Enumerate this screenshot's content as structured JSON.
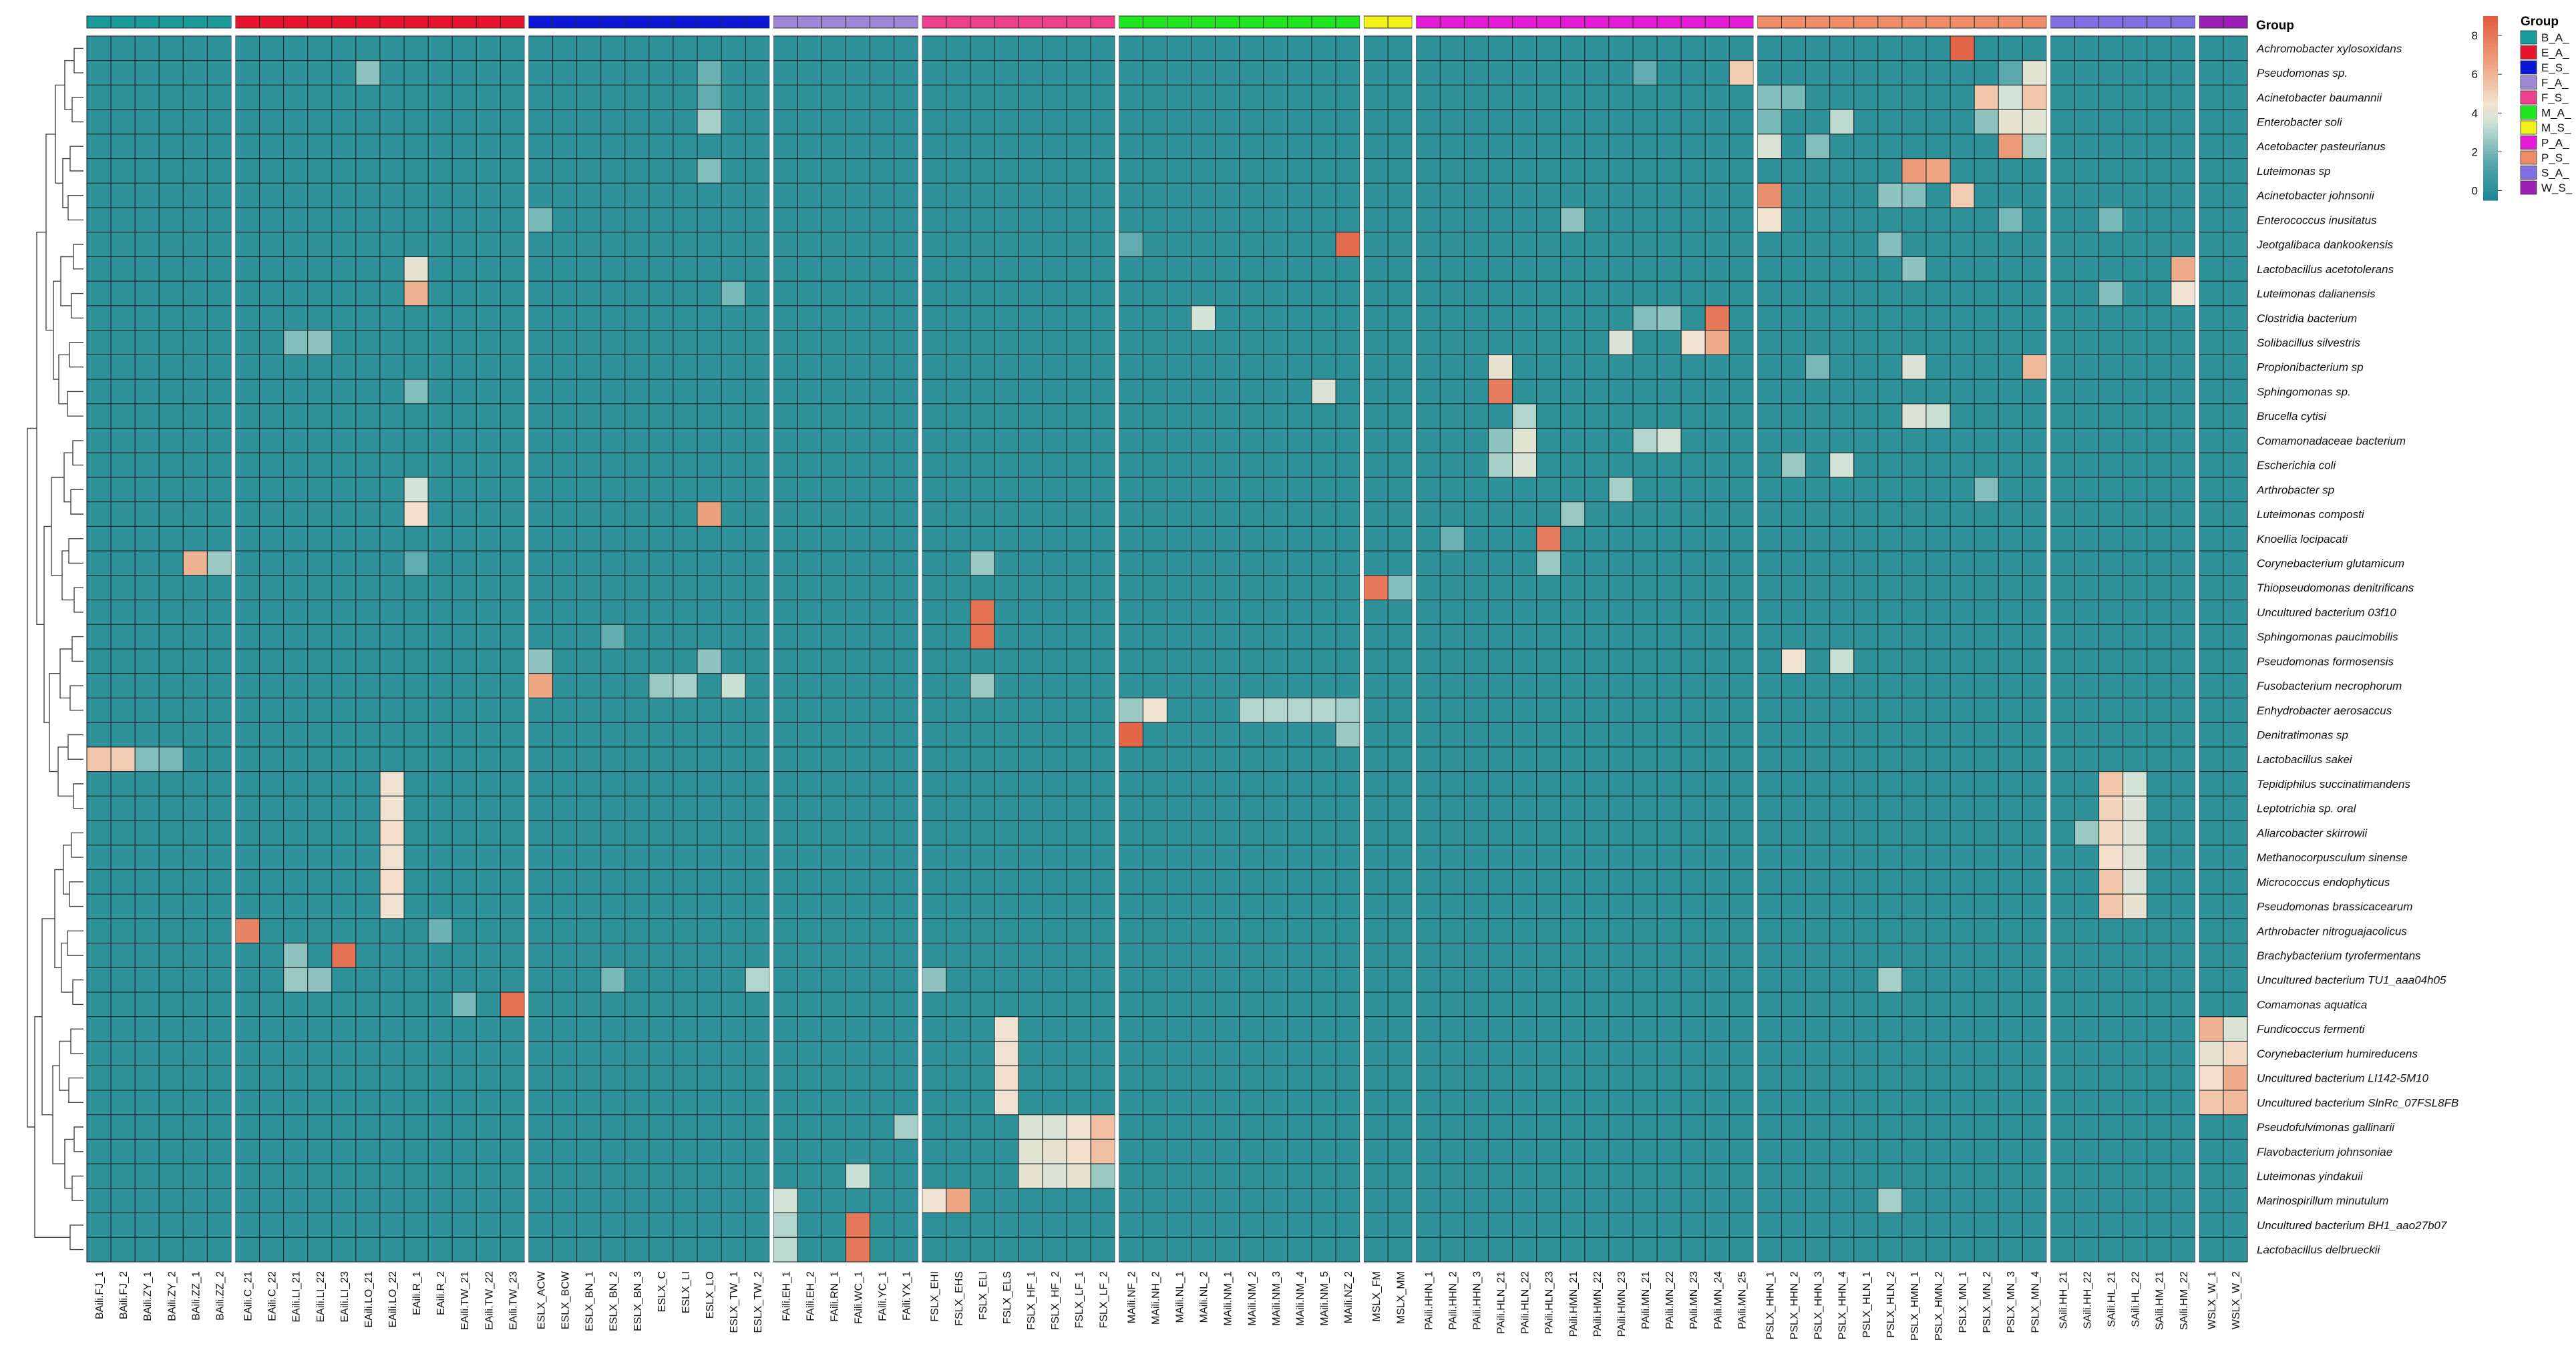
{
  "chart_data": {
    "type": "heatmap",
    "title": "",
    "annotation_title": "Group",
    "row_labels": [
      "Achromobacter xylosoxidans",
      "Pseudomonas sp.",
      "Acinetobacter baumannii",
      "Enterobacter soli",
      "Acetobacter pasteurianus",
      "Luteimonas sp",
      "Acinetobacter johnsonii",
      "Enterococcus inusitatus",
      "Jeotgalibaca dankookensis",
      "Lactobacillus acetotolerans",
      "Luteimonas dalianensis",
      "Clostridia bacterium",
      "Solibacillus silvestris",
      "Propionibacterium sp",
      "Sphingomonas sp.",
      "Brucella cytisi",
      "Comamonadaceae bacterium",
      "Escherichia coli",
      "Arthrobacter sp",
      "Luteimonas composti",
      "Knoellia locipacati",
      "Corynebacterium glutamicum",
      "Thiopseudomonas denitrificans",
      "Uncultured bacterium 03f10",
      "Sphingomonas paucimobilis",
      "Pseudomonas formosensis",
      "Fusobacterium necrophorum",
      "Enhydrobacter aerosaccus",
      "Denitratimonas sp",
      "Lactobacillus sakei",
      "Tepidiphilus succinatimandens",
      "Leptotrichia sp. oral",
      "Aliarcobacter skirrowii",
      "Methanocorpusculum sinense",
      "Micrococcus endophyticus",
      "Pseudomonas brassicacearum",
      "Arthrobacter nitroguajacolicus",
      "Brachybacterium tyrofermentans",
      "Uncultured bacterium TU1_aaa04h05",
      "Comamonas aquatica",
      "Fundicoccus fermenti",
      "Corynebacterium humireducens",
      "Uncultured bacterium LI142-5M10",
      "Uncultured bacterium SlnRc_07FSL8FB",
      "Pseudofulvimonas gallinarii",
      "Flavobacterium johnsoniae",
      "Luteimonas yindakuii",
      "Marinospirillum minutulum",
      "Uncultured bacterium BH1_aao27b07",
      "Lactobacillus delbrueckii"
    ],
    "groups": [
      {
        "name": "B_A_",
        "color": "#1a9a9a",
        "columns": [
          "BAili.FJ_1",
          "BAili.FJ_2",
          "BAili.ZY_1",
          "BAili.ZY_2",
          "BAili.ZZ_1",
          "BAili.ZZ_2"
        ]
      },
      {
        "name": "E_A_",
        "color": "#e8142e",
        "columns": [
          "EAili.C_21",
          "EAili.C_22",
          "EAili.LI_21",
          "EAili.LI_22",
          "EAili.LI_23",
          "EAili.LO_21",
          "EAili.LO_22",
          "EAili.R_1",
          "EAili.R_2",
          "EAili.TW_21",
          "EAili.TW_22",
          "EAili.TW_23"
        ]
      },
      {
        "name": "E_S_",
        "color": "#0a18d6",
        "columns": [
          "ESLX_ACW",
          "ESLX_BCW",
          "ESLX_BN_1",
          "ESLX_BN_2",
          "ESLX_BN_3",
          "ESLX_C",
          "ESLX_LI",
          "ESLX_LO",
          "ESLX_TW_1",
          "ESLX_TW_2"
        ]
      },
      {
        "name": "F_A_",
        "color": "#9b87d6",
        "columns": [
          "FAili.EH_1",
          "FAili.EH_2",
          "FAili.RN_1",
          "FAili.WC_1",
          "FAili.YC_1",
          "FAili.YX_1"
        ]
      },
      {
        "name": "F_S_",
        "color": "#ee3f8c",
        "columns": [
          "FSLX_EHI",
          "FSLX_EHS",
          "FSLX_ELI",
          "FSLX_ELS",
          "FSLX_HF_1",
          "FSLX_HF_2",
          "FSLX_LF_1",
          "FSLX_LF_2"
        ]
      },
      {
        "name": "M_A_",
        "color": "#1fe61f",
        "columns": [
          "MAili.NF_2",
          "MAili.NH_2",
          "MAili.NL_1",
          "MAili.NL_2",
          "MAili.NM_1",
          "MAili.NM_2",
          "MAili.NM_3",
          "MAili.NM_4",
          "MAili.NM_5",
          "MAili.NZ_2"
        ]
      },
      {
        "name": "M_S_",
        "color": "#f2f21a",
        "columns": [
          "MSLX_FM",
          "MSLX_MM"
        ]
      },
      {
        "name": "P_A_",
        "color": "#e41ad6",
        "columns": [
          "PAili.HHN_1",
          "PAili.HHN_2",
          "PAili.HHN_3",
          "PAili.HLN_21",
          "PAili.HLN_22",
          "PAili.HLN_23",
          "PAili.HMN_21",
          "PAili.HMN_22",
          "PAili.HMN_23",
          "PAili.MN_21",
          "PAili.MN_22",
          "PAili.MN_23",
          "PAili.MN_24",
          "PAili.MN_25"
        ]
      },
      {
        "name": "P_S_",
        "color": "#ef8d6a",
        "columns": [
          "PSLX_HHN_1",
          "PSLX_HHN_2",
          "PSLX_HHN_3",
          "PSLX_HHN_4",
          "PSLX_HLN_1",
          "PSLX_HLN_2",
          "PSLX_HMN_1",
          "PSLX_HMN_2",
          "PSLX_MN_1",
          "PSLX_MN_2",
          "PSLX_MN_3",
          "PSLX_MN_4"
        ]
      },
      {
        "name": "S_A_",
        "color": "#7f6fe0",
        "columns": [
          "SAili.HH_21",
          "SAili.HH_22",
          "SAili.HL_21",
          "SAili.HL_22",
          "SAili.HM_21",
          "SAili.HM_22"
        ]
      },
      {
        "name": "W_S_",
        "color": "#9c20b5",
        "columns": [
          "WSLX_W_1",
          "WSLX_W_2"
        ]
      }
    ],
    "color_scale": {
      "min": -0.5,
      "max": 9,
      "ticks": [
        0,
        2,
        4,
        6,
        8
      ],
      "stops": [
        {
          "value": -0.5,
          "color": "#1a8591"
        },
        {
          "value": 1.5,
          "color": "#5aa9ad"
        },
        {
          "value": 3.5,
          "color": "#cfe3d7"
        },
        {
          "value": 4.5,
          "color": "#f3e2cf"
        },
        {
          "value": 6.5,
          "color": "#eea37f"
        },
        {
          "value": 9,
          "color": "#e15a3f"
        }
      ],
      "base_value": 0.15
    },
    "highlights": [
      [
        0,
        "PSLX_MN_1",
        8.6
      ],
      [
        1,
        "EAili.LO_21",
        2.4
      ],
      [
        1,
        "ESLX_LO",
        1.8
      ],
      [
        1,
        "PAili.MN_25",
        5.2
      ],
      [
        1,
        "PSLX_MN_4",
        4.0
      ],
      [
        1,
        "PAili.MN_21",
        1.6
      ],
      [
        1,
        "PSLX_MN_3",
        1.5
      ],
      [
        2,
        "PSLX_MN_2",
        5.4
      ],
      [
        2,
        "PSLX_MN_4",
        5.4
      ],
      [
        2,
        "PSLX_MN_3",
        3.6
      ],
      [
        2,
        "PSLX_HHN_1",
        2.2
      ],
      [
        2,
        "PSLX_HHN_2",
        2.0
      ],
      [
        2,
        "ESLX_LO",
        1.6
      ],
      [
        3,
        "PSLX_MN_3",
        4.2
      ],
      [
        3,
        "PSLX_MN_4",
        4.0
      ],
      [
        3,
        "PSLX_HHN_4",
        3.2
      ],
      [
        3,
        "PSLX_MN_2",
        2.4
      ],
      [
        3,
        "ESLX_LO",
        2.8
      ],
      [
        3,
        "PSLX_HHN_1",
        2.0
      ],
      [
        4,
        "PSLX_MN_3",
        6.8
      ],
      [
        4,
        "PSLX_HHN_1",
        3.8
      ],
      [
        4,
        "PSLX_MN_4",
        2.8
      ],
      [
        4,
        "PSLX_HHN_3",
        2.2
      ],
      [
        5,
        "PSLX_HMN_1",
        6.8
      ],
      [
        5,
        "PSLX_HMN_2",
        6.4
      ],
      [
        5,
        "ESLX_LO",
        2.2
      ],
      [
        6,
        "PSLX_HHN_1",
        7.2
      ],
      [
        6,
        "PSLX_MN_1",
        5.2
      ],
      [
        6,
        "PSLX_HLN_2",
        2.4
      ],
      [
        6,
        "PSLX_HMN_1",
        2.2
      ],
      [
        7,
        "PSLX_HHN_1",
        4.4
      ],
      [
        7,
        "ESLX_ACW",
        2.0
      ],
      [
        7,
        "PAili.HMN_21",
        2.4
      ],
      [
        7,
        "PSLX_MN_3",
        2.0
      ],
      [
        7,
        "SAili.HL_21",
        2.0
      ],
      [
        8,
        "MAili.NZ_2",
        8.4
      ],
      [
        8,
        "MAili.NF_2",
        1.6
      ],
      [
        8,
        "PSLX_HLN_2",
        2.2
      ],
      [
        9,
        "EAili.R_1",
        4.2
      ],
      [
        9,
        "SAili.HM_22",
        6.2
      ],
      [
        9,
        "PSLX_HMN_1",
        2.4
      ],
      [
        10,
        "EAili.R_1",
        6.0
      ],
      [
        10,
        "SAili.HM_22",
        4.4
      ],
      [
        10,
        "ESLX_TW_1",
        2.0
      ],
      [
        10,
        "SAili.HL_21",
        2.2
      ],
      [
        11,
        "PAili.MN_24",
        8.0
      ],
      [
        11,
        "MAili.NL_2",
        3.6
      ],
      [
        11,
        "PAili.MN_22",
        2.4
      ],
      [
        11,
        "PAili.MN_21",
        2.2
      ],
      [
        12,
        "PAili.MN_23",
        4.4
      ],
      [
        12,
        "PAili.MN_24",
        6.2
      ],
      [
        12,
        "PAili.HMN_23",
        3.8
      ],
      [
        12,
        "EAili.LI_22",
        2.4
      ],
      [
        12,
        "EAili.LI_21",
        2.2
      ],
      [
        13,
        "PAili.HLN_21",
        4.2
      ],
      [
        13,
        "PSLX_MN_4",
        5.8
      ],
      [
        13,
        "PSLX_HMN_1",
        3.8
      ],
      [
        13,
        "PSLX_HHN_3",
        2.0
      ],
      [
        14,
        "PAili.HLN_21",
        7.8
      ],
      [
        14,
        "MAili.NM_5",
        3.8
      ],
      [
        14,
        "EAili.R_1",
        2.2
      ],
      [
        15,
        "PSLX_HMN_1",
        3.8
      ],
      [
        15,
        "PSLX_HMN_2",
        3.4
      ],
      [
        15,
        "PAili.HLN_22",
        3.0
      ],
      [
        16,
        "PAili.HLN_22",
        4.0
      ],
      [
        16,
        "PAili.MN_22",
        3.6
      ],
      [
        16,
        "PAili.MN_21",
        3.0
      ],
      [
        16,
        "PAili.HLN_21",
        2.4
      ],
      [
        17,
        "PAili.HLN_22",
        3.8
      ],
      [
        17,
        "PSLX_HHN_4",
        3.6
      ],
      [
        17,
        "PSLX_HHN_2",
        2.6
      ],
      [
        17,
        "PAili.HLN_21",
        2.8
      ],
      [
        18,
        "PAili.HMN_23",
        2.8
      ],
      [
        18,
        "EAili.R_1",
        3.6
      ],
      [
        18,
        "PSLX_MN_2",
        2.2
      ],
      [
        19,
        "EAili.R_1",
        4.6
      ],
      [
        19,
        "ESLX_LO",
        6.6
      ],
      [
        19,
        "PAili.HMN_21",
        2.6
      ],
      [
        20,
        "PAili.HLN_23",
        7.8
      ],
      [
        20,
        "PAili.HHN_2",
        1.8
      ],
      [
        21,
        "EAili.R_1",
        1.6
      ],
      [
        21,
        "BAili.ZZ_1",
        6.0
      ],
      [
        21,
        "BAili.ZZ_2",
        2.6
      ],
      [
        21,
        "FSLX_ELI",
        2.6
      ],
      [
        21,
        "PAili.HLN_23",
        2.6
      ],
      [
        22,
        "MSLX_FM",
        8.0
      ],
      [
        22,
        "MSLX_MM",
        2.2
      ],
      [
        23,
        "FSLX_ELI",
        8.2
      ],
      [
        24,
        "FSLX_ELI",
        8.2
      ],
      [
        24,
        "ESLX_BN_2",
        1.6
      ],
      [
        25,
        "PSLX_HHN_2",
        4.4
      ],
      [
        25,
        "PSLX_HHN_4",
        3.4
      ],
      [
        25,
        "ESLX_ACW",
        2.4
      ],
      [
        25,
        "ESLX_LO",
        2.4
      ],
      [
        26,
        "ESLX_ACW",
        6.4
      ],
      [
        26,
        "ESLX_LI",
        2.8
      ],
      [
        26,
        "ESLX_C",
        2.6
      ],
      [
        26,
        "ESLX_TW_1",
        3.4
      ],
      [
        26,
        "FSLX_ELI",
        2.6
      ],
      [
        27,
        "MAili.NH_2",
        4.4
      ],
      [
        27,
        "MAili.NF_2",
        2.6
      ],
      [
        27,
        "MAili.NM_2",
        3.0
      ],
      [
        27,
        "MAili.NM_3",
        3.0
      ],
      [
        27,
        "MAili.NM_4",
        3.0
      ],
      [
        27,
        "MAili.NM_5",
        3.0
      ],
      [
        27,
        "MAili.NZ_2",
        2.8
      ],
      [
        28,
        "MAili.NF_2",
        8.6
      ],
      [
        28,
        "MAili.NZ_2",
        2.6
      ],
      [
        29,
        "BAili.FJ_1",
        5.4
      ],
      [
        29,
        "BAili.FJ_2",
        5.2
      ],
      [
        29,
        "BAili.ZY_1",
        2.2
      ],
      [
        29,
        "BAili.ZY_2",
        2.0
      ],
      [
        30,
        "EAili.LO_22",
        4.4
      ],
      [
        30,
        "SAili.HL_21",
        5.4
      ],
      [
        30,
        "SAili.HL_22",
        3.6
      ],
      [
        31,
        "EAili.LO_22",
        4.4
      ],
      [
        31,
        "SAili.HL_21",
        5.0
      ],
      [
        31,
        "SAili.HL_22",
        3.8
      ],
      [
        32,
        "EAili.LO_22",
        4.6
      ],
      [
        32,
        "SAili.HL_21",
        4.8
      ],
      [
        32,
        "SAili.HL_22",
        3.8
      ],
      [
        32,
        "SAili.HH_22",
        2.6
      ],
      [
        33,
        "EAili.LO_22",
        4.4
      ],
      [
        33,
        "SAili.HL_21",
        4.6
      ],
      [
        33,
        "SAili.HL_22",
        3.8
      ],
      [
        34,
        "EAili.LO_22",
        4.6
      ],
      [
        34,
        "SAili.HL_21",
        5.4
      ],
      [
        34,
        "SAili.HL_22",
        3.8
      ],
      [
        35,
        "EAili.LO_22",
        4.4
      ],
      [
        35,
        "SAili.HL_21",
        5.4
      ],
      [
        35,
        "SAili.HL_22",
        4.2
      ],
      [
        36,
        "EAili.C_21",
        7.6
      ],
      [
        36,
        "EAili.R_2",
        1.8
      ],
      [
        37,
        "EAili.LI_23",
        8.2
      ],
      [
        37,
        "EAili.LI_21",
        2.4
      ],
      [
        38,
        "EAili.LI_21",
        2.6
      ],
      [
        38,
        "EAili.LI_22",
        2.4
      ],
      [
        38,
        "ESLX_BN_2",
        2.0
      ],
      [
        38,
        "ESLX_TW_2",
        3.0
      ],
      [
        38,
        "FSLX_EHI",
        2.4
      ],
      [
        38,
        "PSLX_HLN_2",
        2.8
      ],
      [
        39,
        "EAili.TW_23",
        8.2
      ],
      [
        39,
        "EAili.TW_21",
        2.0
      ],
      [
        40,
        "FSLX_ELS",
        4.4
      ],
      [
        40,
        "WSLX_W_1",
        6.0
      ],
      [
        40,
        "WSLX_W_2",
        3.8
      ],
      [
        41,
        "FSLX_ELS",
        4.4
      ],
      [
        41,
        "WSLX_W_1",
        4.2
      ],
      [
        41,
        "WSLX_W_2",
        4.8
      ],
      [
        42,
        "FSLX_ELS",
        4.6
      ],
      [
        42,
        "WSLX_W_1",
        4.6
      ],
      [
        42,
        "WSLX_W_2",
        6.2
      ],
      [
        43,
        "FSLX_ELS",
        4.4
      ],
      [
        43,
        "WSLX_W_1",
        5.4
      ],
      [
        43,
        "WSLX_W_2",
        5.8
      ],
      [
        44,
        "FSLX_HF_1",
        3.8
      ],
      [
        44,
        "FSLX_HF_2",
        3.8
      ],
      [
        44,
        "FSLX_LF_1",
        4.4
      ],
      [
        44,
        "FSLX_LF_2",
        5.6
      ],
      [
        44,
        "FAili.YX_1",
        2.8
      ],
      [
        45,
        "FSLX_HF_1",
        4.0
      ],
      [
        45,
        "FSLX_HF_2",
        4.2
      ],
      [
        45,
        "FSLX_LF_1",
        4.6
      ],
      [
        45,
        "FSLX_LF_2",
        5.6
      ],
      [
        46,
        "FSLX_HF_1",
        4.2
      ],
      [
        46,
        "FSLX_HF_2",
        3.8
      ],
      [
        46,
        "FSLX_LF_1",
        4.2
      ],
      [
        46,
        "FSLX_LF_2",
        2.6
      ],
      [
        46,
        "FAili.WC_1",
        3.4
      ],
      [
        47,
        "FSLX_EHI",
        4.4
      ],
      [
        47,
        "FSLX_EHS",
        6.4
      ],
      [
        47,
        "FAili.EH_1",
        3.6
      ],
      [
        47,
        "PSLX_HLN_2",
        2.8
      ],
      [
        48,
        "FAili.WC_1",
        8.0
      ],
      [
        48,
        "FAili.EH_1",
        3.0
      ],
      [
        49,
        "FAili.WC_1",
        8.0
      ],
      [
        49,
        "FAili.EH_1",
        3.2
      ]
    ]
  }
}
